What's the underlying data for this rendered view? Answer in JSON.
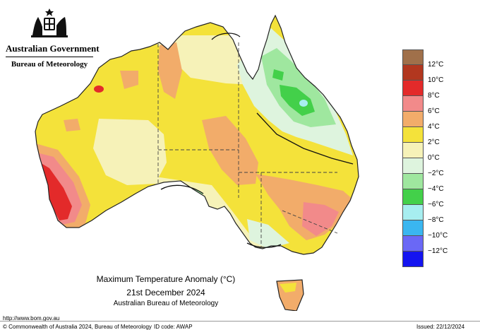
{
  "header": {
    "org": "Australian Government",
    "bureau": "Bureau of Meteorology"
  },
  "map": {
    "title": "Maximum Temperature Anomaly (°C)",
    "date": "21st December 2024",
    "source": "Australian Bureau of Meteorology",
    "crest_icon": "coat-of-arms-icon"
  },
  "legend": {
    "items": [
      {
        "label": "",
        "color": "#a0704a"
      },
      {
        "label": "12°C",
        "color": "#b2371f"
      },
      {
        "label": "10°C",
        "color": "#e32a2a"
      },
      {
        "label": "8°C",
        "color": "#f28a8a"
      },
      {
        "label": "6°C",
        "color": "#f2ac6a"
      },
      {
        "label": "4°C",
        "color": "#f4e23a"
      },
      {
        "label": "2°C",
        "color": "#f6f2b8"
      },
      {
        "label": "0°C",
        "color": "#def4de"
      },
      {
        "label": "−2°C",
        "color": "#9fe79f"
      },
      {
        "label": "−4°C",
        "color": "#43d04a"
      },
      {
        "label": "−6°C",
        "color": "#a7eef0"
      },
      {
        "label": "−8°C",
        "color": "#3ab6f0"
      },
      {
        "label": "−10°C",
        "color": "#6a68f6"
      },
      {
        "label": "−12°C",
        "color": "#1414f0"
      }
    ]
  },
  "footer": {
    "url": "http://www.bom.gov.au",
    "copyright": "© Commonwealth of Australia 2024, Bureau of Meteorology",
    "id_code": "ID code: AWAP",
    "issued": "Issued: 22/12/2024"
  }
}
